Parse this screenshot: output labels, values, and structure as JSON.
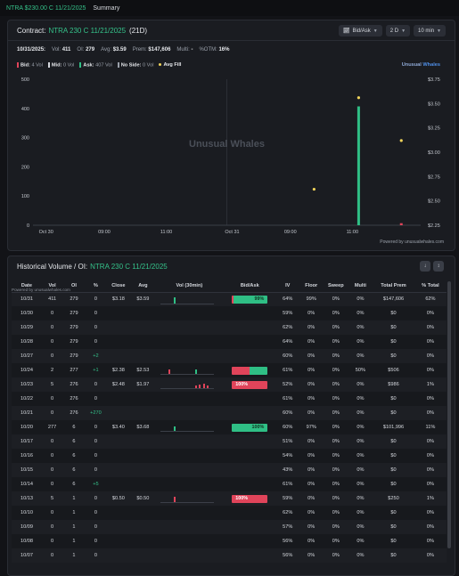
{
  "topbar": {
    "ticker": "NTRA $230.00 C 11/21/2025",
    "summary": "Summary"
  },
  "contract": {
    "label": "Contract:",
    "symbol": "NTRA 230 C 11/21/2025",
    "dte": "(21D)",
    "controls": [
      {
        "label": "Bid/Ask",
        "icon": "chart-icon"
      },
      {
        "label": "2 D"
      },
      {
        "label": "10 min"
      }
    ]
  },
  "stats": {
    "date": "10/31/2025:",
    "vol_k": "Vol:",
    "vol": "411",
    "oi_k": "OI:",
    "oi": "279",
    "avg_k": "Avg:",
    "avg": "$3.59",
    "prem_k": "Prem:",
    "prem": "$147,606",
    "multi_k": "Multi:",
    "multi": "-",
    "otm_k": "%OTM:",
    "otm": "16%"
  },
  "legend": [
    {
      "name": "Bid:",
      "value": "4 Vol",
      "color": "#e0445a"
    },
    {
      "name": "Mid:",
      "value": "0 Vol",
      "color": "#d5d8de"
    },
    {
      "name": "Ask:",
      "value": "407 Vol",
      "color": "#2fbf85"
    },
    {
      "name": "No Side:",
      "value": "0 Vol",
      "color": "#9aa0aa"
    },
    {
      "name": "Avg Fill",
      "value": "",
      "color": "#f1d45a"
    }
  ],
  "uw_tag": {
    "a": "Unusual",
    "b": "Whales"
  },
  "watermark": {
    "a": "Unusual",
    "b": "Whales"
  },
  "chart_data": {
    "type": "bar",
    "x_tick_labels": [
      "Oct 30",
      "09:00",
      "11:00",
      "Oct 31",
      "09:00",
      "11:00"
    ],
    "left_ticks": [
      "500",
      "400",
      "300",
      "200",
      "100",
      "0"
    ],
    "right_ticks": [
      "$3.75",
      "$3.50",
      "$3.25",
      "$3.00",
      "$2.75",
      "$2.50",
      "$2.25"
    ],
    "ylim_volume": [
      0,
      500
    ],
    "ylim_price": [
      2.25,
      3.75
    ],
    "bars": [
      {
        "session_frac": 0.68,
        "ask": 407,
        "bid": 0
      },
      {
        "session_frac": 0.9,
        "ask": 0,
        "bid": 4
      }
    ],
    "fills": [
      {
        "session_frac": 0.45,
        "price": 2.62
      },
      {
        "session_frac": 0.68,
        "price": 3.56
      },
      {
        "session_frac": 0.9,
        "price": 3.12
      }
    ],
    "grid": false
  },
  "powered": "Powered by unusualwhales.com",
  "history": {
    "label": "Historical Volume / OI:",
    "symbol": "NTRA 230 C 11/21/2025",
    "powered": "Powered by unusualwhales.com",
    "columns": [
      "Date",
      "Vol",
      "OI",
      "%",
      "Close",
      "Avg",
      "Vol (30min)",
      "Bid/Ask",
      "IV",
      "Floor",
      "Sweep",
      "Multi",
      "Total Prem",
      "% Total"
    ],
    "rows": [
      {
        "date": "10/31",
        "vol": "411",
        "oi": "279",
        "chg": "0",
        "close": "$3.18",
        "avg": "$3.59",
        "spark": [
          0.7
        ],
        "ba_r": 0.01,
        "ba_label": "99%",
        "ba_side": "green",
        "iv": "64%",
        "floor": "99%",
        "sweep": "0%",
        "multi": "0%",
        "prem": "$147,606",
        "pct": "62%"
      },
      {
        "date": "10/30",
        "vol": "0",
        "oi": "279",
        "chg": "0",
        "close": "",
        "avg": "",
        "spark": [],
        "ba_r": null,
        "ba_label": "",
        "ba_side": "",
        "iv": "59%",
        "floor": "0%",
        "sweep": "0%",
        "multi": "0%",
        "prem": "$0",
        "pct": "0%"
      },
      {
        "date": "10/29",
        "vol": "0",
        "oi": "279",
        "chg": "0",
        "close": "",
        "avg": "",
        "spark": [],
        "ba_r": null,
        "ba_label": "",
        "ba_side": "",
        "iv": "62%",
        "floor": "0%",
        "sweep": "0%",
        "multi": "0%",
        "prem": "$0",
        "pct": "0%"
      },
      {
        "date": "10/28",
        "vol": "0",
        "oi": "279",
        "chg": "0",
        "close": "",
        "avg": "",
        "spark": [],
        "ba_r": null,
        "ba_label": "",
        "ba_side": "",
        "iv": "64%",
        "floor": "0%",
        "sweep": "0%",
        "multi": "0%",
        "prem": "$0",
        "pct": "0%"
      },
      {
        "date": "10/27",
        "vol": "0",
        "oi": "279",
        "chg": "+2",
        "close": "",
        "avg": "",
        "spark": [],
        "ba_r": null,
        "ba_label": "",
        "ba_side": "",
        "iv": "60%",
        "floor": "0%",
        "sweep": "0%",
        "multi": "0%",
        "prem": "$0",
        "pct": "0%"
      },
      {
        "date": "10/24",
        "vol": "2",
        "oi": "277",
        "chg": "+1",
        "close": "$2.38",
        "avg": "$2.53",
        "spark": [
          0.6,
          0.6
        ],
        "ba_r": 0.5,
        "ba_label": "",
        "ba_side": "",
        "iv": "61%",
        "floor": "0%",
        "sweep": "0%",
        "multi": "50%",
        "prem": "$506",
        "pct": "0%"
      },
      {
        "date": "10/23",
        "vol": "5",
        "oi": "276",
        "chg": "0",
        "close": "$2.48",
        "avg": "$1.97",
        "spark": [
          0.3,
          0.4,
          0.6,
          0.35
        ],
        "ba_r": 1,
        "ba_label": "100%",
        "ba_side": "red",
        "iv": "52%",
        "floor": "0%",
        "sweep": "0%",
        "multi": "0%",
        "prem": "$986",
        "pct": "1%"
      },
      {
        "date": "10/22",
        "vol": "0",
        "oi": "276",
        "chg": "0",
        "close": "",
        "avg": "",
        "spark": [],
        "ba_r": null,
        "ba_label": "",
        "ba_side": "",
        "iv": "61%",
        "floor": "0%",
        "sweep": "0%",
        "multi": "0%",
        "prem": "$0",
        "pct": "0%"
      },
      {
        "date": "10/21",
        "vol": "0",
        "oi": "276",
        "chg": "+270",
        "close": "",
        "avg": "",
        "spark": [],
        "ba_r": null,
        "ba_label": "",
        "ba_side": "",
        "iv": "60%",
        "floor": "0%",
        "sweep": "0%",
        "multi": "0%",
        "prem": "$0",
        "pct": "0%"
      },
      {
        "date": "10/20",
        "vol": "277",
        "oi": "6",
        "chg": "0",
        "close": "$3.40",
        "avg": "$3.68",
        "spark": [
          0.6
        ],
        "ba_r": 0,
        "ba_label": "100%",
        "ba_side": "green",
        "iv": "60%",
        "floor": "97%",
        "sweep": "0%",
        "multi": "0%",
        "prem": "$101,996",
        "pct": "11%"
      },
      {
        "date": "10/17",
        "vol": "0",
        "oi": "6",
        "chg": "0",
        "close": "",
        "avg": "",
        "spark": [],
        "ba_r": null,
        "ba_label": "",
        "ba_side": "",
        "iv": "51%",
        "floor": "0%",
        "sweep": "0%",
        "multi": "0%",
        "prem": "$0",
        "pct": "0%"
      },
      {
        "date": "10/16",
        "vol": "0",
        "oi": "6",
        "chg": "0",
        "close": "",
        "avg": "",
        "spark": [],
        "ba_r": null,
        "ba_label": "",
        "ba_side": "",
        "iv": "54%",
        "floor": "0%",
        "sweep": "0%",
        "multi": "0%",
        "prem": "$0",
        "pct": "0%"
      },
      {
        "date": "10/15",
        "vol": "0",
        "oi": "6",
        "chg": "0",
        "close": "",
        "avg": "",
        "spark": [],
        "ba_r": null,
        "ba_label": "",
        "ba_side": "",
        "iv": "43%",
        "floor": "0%",
        "sweep": "0%",
        "multi": "0%",
        "prem": "$0",
        "pct": "0%"
      },
      {
        "date": "10/14",
        "vol": "0",
        "oi": "6",
        "chg": "+5",
        "close": "",
        "avg": "",
        "spark": [],
        "ba_r": null,
        "ba_label": "",
        "ba_side": "",
        "iv": "61%",
        "floor": "0%",
        "sweep": "0%",
        "multi": "0%",
        "prem": "$0",
        "pct": "0%"
      },
      {
        "date": "10/13",
        "vol": "5",
        "oi": "1",
        "chg": "0",
        "close": "$0.50",
        "avg": "$0.50",
        "spark": [
          0.7
        ],
        "ba_r": 1,
        "ba_label": "100%",
        "ba_side": "red",
        "iv": "59%",
        "floor": "0%",
        "sweep": "0%",
        "multi": "0%",
        "prem": "$250",
        "pct": "1%"
      },
      {
        "date": "10/10",
        "vol": "0",
        "oi": "1",
        "chg": "0",
        "close": "",
        "avg": "",
        "spark": [],
        "ba_r": null,
        "ba_label": "",
        "ba_side": "",
        "iv": "62%",
        "floor": "0%",
        "sweep": "0%",
        "multi": "0%",
        "prem": "$0",
        "pct": "0%"
      },
      {
        "date": "10/09",
        "vol": "0",
        "oi": "1",
        "chg": "0",
        "close": "",
        "avg": "",
        "spark": [],
        "ba_r": null,
        "ba_label": "",
        "ba_side": "",
        "iv": "57%",
        "floor": "0%",
        "sweep": "0%",
        "multi": "0%",
        "prem": "$0",
        "pct": "0%"
      },
      {
        "date": "10/08",
        "vol": "0",
        "oi": "1",
        "chg": "0",
        "close": "",
        "avg": "",
        "spark": [],
        "ba_r": null,
        "ba_label": "",
        "ba_side": "",
        "iv": "56%",
        "floor": "0%",
        "sweep": "0%",
        "multi": "0%",
        "prem": "$0",
        "pct": "0%"
      },
      {
        "date": "10/07",
        "vol": "0",
        "oi": "1",
        "chg": "0",
        "close": "",
        "avg": "",
        "spark": [],
        "ba_r": null,
        "ba_label": "",
        "ba_side": "",
        "iv": "56%",
        "floor": "0%",
        "sweep": "0%",
        "multi": "0%",
        "prem": "$0",
        "pct": "0%"
      }
    ]
  },
  "colors": {
    "ask": "#2fbf85",
    "bid": "#e0445a",
    "fill": "#f1d45a",
    "positive": "#35c28a"
  }
}
